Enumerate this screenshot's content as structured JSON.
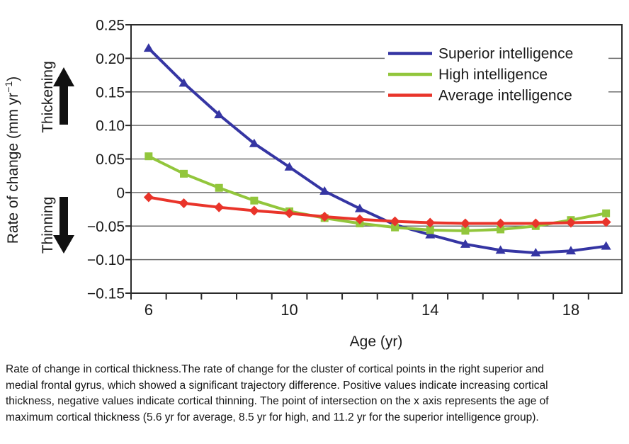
{
  "figure": {
    "y_axis": {
      "label_main": "Rate of change (mm yr",
      "label_sup": "−1",
      "label_close": ")",
      "thickening_label": "Thickening",
      "thinning_label": "Thinning",
      "tick_labels": [
        "0.25",
        "0.20",
        "0.15",
        "0.10",
        "0.05",
        "0",
        "−0.05",
        "−0.10",
        "−0.15"
      ]
    },
    "x_axis": {
      "label": "Age (yr)",
      "tick_labels": [
        "6",
        "10",
        "14",
        "18"
      ]
    }
  },
  "chart_data": {
    "type": "line",
    "title": "",
    "xlabel": "Age (yr)",
    "ylabel": "Rate of change (mm yr⁻¹)",
    "x": [
      6,
      7,
      8,
      9,
      10,
      11,
      12,
      13,
      14,
      15,
      16,
      17,
      18,
      19
    ],
    "series": [
      {
        "name": "Superior intelligence",
        "color": "#3535a3",
        "marker": "triangle",
        "values": [
          0.215,
          0.163,
          0.116,
          0.073,
          0.038,
          0.002,
          -0.024,
          -0.048,
          -0.063,
          -0.077,
          -0.086,
          -0.09,
          -0.087,
          -0.08
        ]
      },
      {
        "name": "High intelligence",
        "color": "#92c63c",
        "marker": "square",
        "values": [
          0.054,
          0.028,
          0.007,
          -0.012,
          -0.028,
          -0.038,
          -0.046,
          -0.052,
          -0.056,
          -0.057,
          -0.055,
          -0.05,
          -0.041,
          -0.031
        ]
      },
      {
        "name": "Average intelligence",
        "color": "#e9342a",
        "marker": "diamond",
        "values": [
          -0.007,
          -0.016,
          -0.022,
          -0.027,
          -0.031,
          -0.036,
          -0.04,
          -0.043,
          -0.045,
          -0.046,
          -0.046,
          -0.046,
          -0.045,
          -0.044
        ]
      }
    ],
    "xlim": [
      5.5,
      19.45
    ],
    "ylim": [
      -0.15,
      0.25
    ],
    "y_ticks": [
      0.25,
      0.2,
      0.15,
      0.1,
      0.05,
      0,
      -0.05,
      -0.1,
      -0.15
    ],
    "y_gridlines": [
      0.2,
      0.15,
      0.1,
      0.05,
      0,
      -0.05,
      -0.1
    ],
    "x_label_ticks": [
      6,
      10,
      14,
      18
    ],
    "x_minor_ticks": [
      5.5,
      6.5,
      7.5,
      8.5,
      9.5,
      10.5,
      11.5,
      12.5,
      13.5,
      14.5,
      15.5,
      16.5,
      17.5,
      18.5
    ],
    "grid": "horizontal",
    "legend_position": "top-right",
    "annotations": [
      "Thickening (up arrow)",
      "Thinning (down arrow)"
    ]
  },
  "caption": {
    "lines": [
      "Rate of change in cortical thickness.The rate of change for the cluster of cortical points in the right superior and",
      "medial frontal gyrus, which showed a significant trajectory difference. Positive values indicate increasing cortical",
      "thickness, negative values indicate cortical thinning. The point of intersection on the x axis represents the age of",
      "maximum cortical thickness (5.6 yr for average, 8.5 yr for high, and 11.2 yr for the superior intelligence group)."
    ]
  }
}
